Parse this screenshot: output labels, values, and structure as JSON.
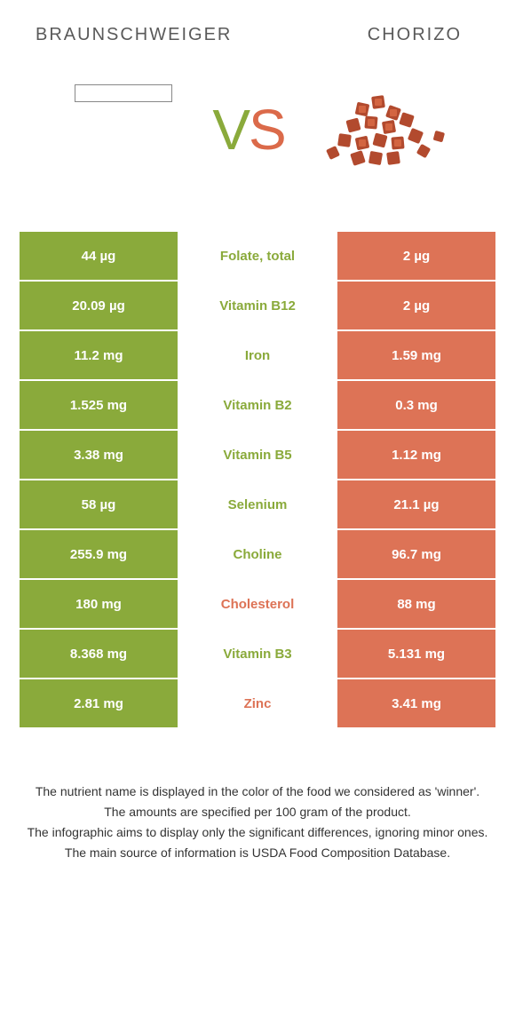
{
  "header": {
    "left_title": "BRAUNSCHWEIGER",
    "right_title": "CHORIZO"
  },
  "vs": {
    "v": "V",
    "s": "S"
  },
  "colors": {
    "green": "#8aaa3b",
    "orange": "#dd7356",
    "white": "#ffffff"
  },
  "rows": [
    {
      "left": "44 µg",
      "label": "Folate, total",
      "right": "2 µg",
      "winner": "green"
    },
    {
      "left": "20.09 µg",
      "label": "Vitamin B12",
      "right": "2 µg",
      "winner": "green"
    },
    {
      "left": "11.2 mg",
      "label": "Iron",
      "right": "1.59 mg",
      "winner": "green"
    },
    {
      "left": "1.525 mg",
      "label": "Vitamin B2",
      "right": "0.3 mg",
      "winner": "green"
    },
    {
      "left": "3.38 mg",
      "label": "Vitamin B5",
      "right": "1.12 mg",
      "winner": "green"
    },
    {
      "left": "58 µg",
      "label": "Selenium",
      "right": "21.1 µg",
      "winner": "green"
    },
    {
      "left": "255.9 mg",
      "label": "Choline",
      "right": "96.7 mg",
      "winner": "green"
    },
    {
      "left": "180 mg",
      "label": "Cholesterol",
      "right": "88 mg",
      "winner": "orange"
    },
    {
      "left": "8.368 mg",
      "label": "Vitamin B3",
      "right": "5.131 mg",
      "winner": "green"
    },
    {
      "left": "2.81 mg",
      "label": "Zinc",
      "right": "3.41 mg",
      "winner": "orange"
    }
  ],
  "footer": {
    "l1": "The nutrient name is displayed in the color of the food we considered as 'winner'.",
    "l2": "The amounts are specified per 100 gram of the product.",
    "l3": "The infographic aims to display only the significant differences, ignoring minor ones.",
    "l4": "The main source of information is USDA Food Composition Database."
  }
}
